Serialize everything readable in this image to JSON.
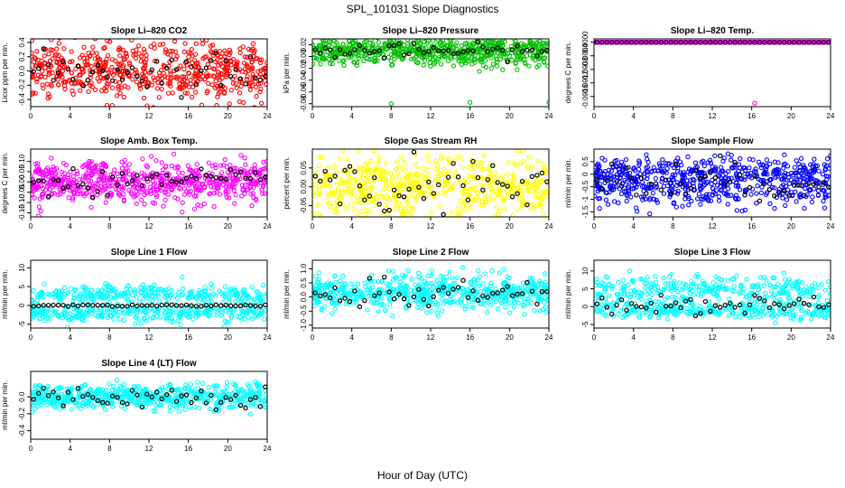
{
  "figure": {
    "title": "SPL_101031  Slope Diagnostics",
    "xlabel": "Hour of Day (UTC)"
  },
  "chart_data": [
    {
      "type": "scatter",
      "title": "Slope Li–820 CO2",
      "ylabel": "Licor ppm per min.",
      "color": "#ff0000",
      "xlim": [
        0,
        24
      ],
      "xticks": [
        0,
        4,
        8,
        12,
        16,
        20,
        24
      ],
      "ylim": [
        -0.5,
        0.45
      ],
      "yticks": [
        -0.4,
        -0.2,
        0.0,
        0.2,
        0.4
      ],
      "ytick_labels": [
        "-0.4",
        "-0.2",
        "0.0",
        "0.2",
        "0.4"
      ],
      "cloud": {
        "bands": [
          {
            "center": 0.0,
            "spread": 0.2
          }
        ],
        "n": 600
      },
      "black_center": 0.0,
      "black_spread": 0.13
    },
    {
      "type": "scatter",
      "title": "Slope Li–820 Pressure",
      "ylabel": "kPa per min.",
      "color": "#00c000",
      "xlim": [
        0,
        24
      ],
      "xticks": [
        0,
        4,
        8,
        12,
        16,
        20,
        24
      ],
      "ylim": [
        -0.085,
        0.03
      ],
      "yticks": [
        -0.08,
        -0.06,
        -0.04,
        -0.02,
        0.0,
        0.02
      ],
      "ytick_labels": [
        "-0.08",
        "-0.06",
        "-0.04",
        "-0.02",
        "0.00",
        "0.02"
      ],
      "cloud": {
        "bands": [
          {
            "center": 0.009,
            "spread": 0.012
          }
        ],
        "n": 650
      },
      "black_center": 0.009,
      "black_spread": 0.006,
      "outliers": [
        [
          8,
          -0.08
        ],
        [
          16,
          -0.078
        ],
        [
          24,
          -0.078
        ]
      ]
    },
    {
      "type": "scatter",
      "title": "Slope Li–820 Temp.",
      "ylabel": "degrees C per min.",
      "color": "#ff00ff",
      "xlim": [
        0,
        24
      ],
      "xticks": [
        0,
        4,
        8,
        12,
        16,
        20,
        24
      ],
      "ylim": [
        -0.0019,
        0.0001
      ],
      "yticks": [
        -0.0016,
        -0.0012,
        -0.0008,
        -0.0004,
        0.0
      ],
      "ytick_labels": [
        "-0.0016",
        "-0.0012",
        "-0.0008",
        "-0.0004",
        "0.0000"
      ],
      "flat_line": 0.0,
      "outliers": [
        [
          16.3,
          -0.0018
        ]
      ]
    },
    {
      "type": "scatter",
      "title": "Slope Amb. Box Temp.",
      "ylabel": "degrees C per min.",
      "color": "#ff00ff",
      "xlim": [
        0,
        24
      ],
      "xticks": [
        0,
        4,
        8,
        12,
        16,
        20,
        24
      ],
      "ylim": [
        -0.17,
        0.16
      ],
      "yticks": [
        -0.15,
        -0.1,
        -0.05,
        0.0,
        0.05,
        0.1
      ],
      "ytick_labels": [
        "-0.15",
        "-0.10",
        "-0.05",
        "0.00",
        "0.05",
        "0.10"
      ],
      "cloud": {
        "bands": [
          {
            "center": 0.0,
            "spread": 0.05
          }
        ],
        "n": 650
      },
      "black_center": 0.0,
      "black_spread": 0.03
    },
    {
      "type": "scatter",
      "title": "Slope Gas Stream RH",
      "ylabel": "percent per min.",
      "color": "#ffff00",
      "xlim": [
        0,
        24
      ],
      "xticks": [
        0,
        4,
        8,
        12,
        16,
        20,
        24
      ],
      "ylim": [
        -0.08,
        0.1
      ],
      "yticks": [
        -0.05,
        0.0,
        0.05
      ],
      "ytick_labels": [
        "-0.05",
        "0.00",
        "0.05"
      ],
      "cloud": {
        "bands": [
          {
            "center": 0.0,
            "spread": 0.045
          }
        ],
        "n": 600
      },
      "black_center": 0.0,
      "black_spread": 0.035
    },
    {
      "type": "scatter",
      "title": "Slope Sample Flow",
      "ylabel": "ml/min per min.",
      "color": "#0000ff",
      "xlim": [
        0,
        24
      ],
      "xticks": [
        0,
        4,
        8,
        12,
        16,
        20,
        24
      ],
      "ylim": [
        -1.7,
        1.0
      ],
      "yticks": [
        -1.5,
        -1.0,
        -0.5,
        0.0,
        0.5
      ],
      "ytick_labels": [
        "-1.5",
        "-1",
        "-0.5",
        "0",
        "0.5"
      ],
      "cloud": {
        "bands": [
          {
            "center": -0.6,
            "spread": 0.35
          },
          {
            "center": 0.1,
            "spread": 0.3
          }
        ],
        "n": 650
      },
      "black_center": -0.3,
      "black_spread": 0.4
    },
    {
      "type": "scatter",
      "title": "Slope Line 1 Flow",
      "ylabel": "ml/min per min.",
      "color": "#00ffff",
      "xlim": [
        0,
        24
      ],
      "xticks": [
        0,
        4,
        8,
        12,
        16,
        20,
        24
      ],
      "ylim": [
        -6,
        12
      ],
      "yticks": [
        -5,
        0,
        5,
        10
      ],
      "ytick_labels": [
        "-5",
        "0",
        "5",
        "10"
      ],
      "cloud": {
        "bands": [
          {
            "center": 3,
            "spread": 1.2
          },
          {
            "center": -2,
            "spread": 1.2
          }
        ],
        "n": 600
      },
      "black_center": 0.0,
      "black_spread": 0.15
    },
    {
      "type": "scatter",
      "title": "Slope Line 2 Flow",
      "ylabel": "ml/min per min.",
      "color": "#00ffff",
      "xlim": [
        0,
        24
      ],
      "xticks": [
        0,
        4,
        8,
        12,
        16,
        20,
        24
      ],
      "ylim": [
        -1.1,
        1.3
      ],
      "yticks": [
        -1.0,
        -0.5,
        0.0,
        0.5,
        1.0
      ],
      "ytick_labels": [
        "-1.0",
        "-0.5",
        "0.0",
        "0.5",
        "1.0"
      ],
      "cloud": {
        "bands": [
          {
            "center": 0.15,
            "spread": 0.3
          }
        ],
        "n": 600
      },
      "black_center": 0.1,
      "black_spread": 0.22
    },
    {
      "type": "scatter",
      "title": "Slope Line 3 Flow",
      "ylabel": "ml/min per min.",
      "color": "#00ffff",
      "xlim": [
        0,
        24
      ],
      "xticks": [
        0,
        4,
        8,
        12,
        16,
        20,
        24
      ],
      "ylim": [
        -6,
        13
      ],
      "yticks": [
        -5,
        0,
        5,
        10
      ],
      "ytick_labels": [
        "-5",
        "0",
        "5",
        "10"
      ],
      "cloud": {
        "bands": [
          {
            "center": 5,
            "spread": 1.8
          },
          {
            "center": -1,
            "spread": 1.2
          }
        ],
        "n": 600
      },
      "black_center": 0.5,
      "black_spread": 1.4
    },
    {
      "type": "scatter",
      "title": "Slope Line 4 (LT) Flow",
      "ylabel": "ml/min per min.",
      "color": "#00ffff",
      "xlim": [
        0,
        24
      ],
      "xticks": [
        0,
        4,
        8,
        12,
        16,
        20,
        24
      ],
      "ylim": [
        -0.5,
        0.3
      ],
      "yticks": [
        -0.4,
        -0.2,
        0.0
      ],
      "ytick_labels": [
        "-0.4",
        "-0.2",
        "0.0"
      ],
      "cloud": {
        "bands": [
          {
            "center": 0.0,
            "spread": 0.07
          }
        ],
        "n": 600
      },
      "black_center": 0.0,
      "black_spread": 0.06
    }
  ]
}
